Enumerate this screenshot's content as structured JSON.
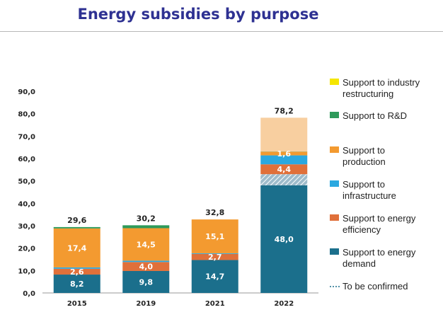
{
  "title": "Energy subsidies by purpose",
  "chart_data": {
    "type": "bar",
    "stacked": true,
    "categories": [
      "2015",
      "2019",
      "2021",
      "2022"
    ],
    "ylim": [
      0,
      90
    ],
    "yticks": [
      "0,0",
      "10,0",
      "20,0",
      "30,0",
      "40,0",
      "50,0",
      "60,0",
      "70,0",
      "80,0",
      "90,0"
    ],
    "legend_position": "right",
    "series": [
      {
        "name": "Support to energy demand",
        "color": "#1b6f8c",
        "values": [
          8.2,
          9.8,
          14.7,
          48.0
        ],
        "labels": [
          "8,2",
          "9,8",
          "14,7",
          "48,0"
        ]
      },
      {
        "name": "To be confirmed",
        "color": "#a8c4d0",
        "hatched": true,
        "values": [
          0,
          0,
          0,
          5.0
        ],
        "labels": [
          "",
          "",
          "",
          ""
        ]
      },
      {
        "name": "Support to energy efficiency",
        "color": "#e0703a",
        "values": [
          2.6,
          4.0,
          2.7,
          4.4
        ],
        "labels": [
          "2,6",
          "4,0",
          "2,7",
          "4,4"
        ]
      },
      {
        "name": "Support to infrastructure",
        "color": "#2aa8e0",
        "values": [
          0.6,
          0.6,
          0.3,
          4.0
        ],
        "labels": [
          "",
          "",
          "",
          ""
        ]
      },
      {
        "name": "Support to production",
        "color": "#f39a30",
        "values": [
          17.4,
          14.5,
          15.1,
          1.6
        ],
        "labels": [
          "17,4",
          "14,5",
          "15,1",
          "1,6"
        ]
      },
      {
        "name": "Support to R&D",
        "color": "#2e9a5a",
        "values": [
          0.6,
          1.3,
          0,
          0.1
        ],
        "labels": [
          "",
          "",
          "",
          ""
        ]
      },
      {
        "name": "Support to industry restructuring",
        "color": "#f5e600",
        "values": [
          0,
          0,
          0,
          0
        ],
        "labels": [
          "",
          "",
          "",
          ""
        ]
      },
      {
        "name": "To be confirmed",
        "color": "#f8cfa0",
        "hatched": false,
        "values": [
          0,
          0,
          0,
          15.1
        ],
        "labels": [
          "",
          "",
          "",
          ""
        ]
      }
    ],
    "totals": [
      "29,6",
      "30,2",
      "32,8",
      "78,2"
    ],
    "legend": [
      {
        "lines": [
          "Support to industry",
          "restructuring"
        ],
        "color": "#f5e600",
        "type": "box"
      },
      {
        "lines": [
          "Support to R&D"
        ],
        "color": "#2e9a5a",
        "type": "box"
      },
      {
        "lines": [
          "Support to",
          "production"
        ],
        "color": "#f39a30",
        "type": "box"
      },
      {
        "lines": [
          "Support to",
          "infrastructure"
        ],
        "color": "#2aa8e0",
        "type": "box"
      },
      {
        "lines": [
          "Support to energy",
          "efficiency"
        ],
        "color": "#e0703a",
        "type": "box"
      },
      {
        "lines": [
          "Support to energy",
          "demand"
        ],
        "color": "#1b6f8c",
        "type": "box"
      },
      {
        "lines": [
          "To be confirmed"
        ],
        "color": "#1b6f8c",
        "type": "dash"
      }
    ]
  }
}
